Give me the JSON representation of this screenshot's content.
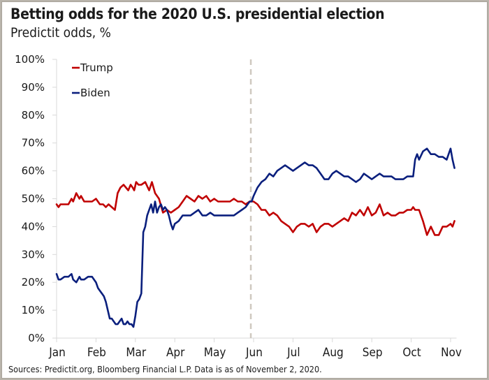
{
  "title": "Betting odds for the 2020 U.S. presidential election",
  "subtitle": "Predictit odds, %",
  "source": "Sources: Predictit.org,  Bloomberg Financial L.P. Data is as of November 2, 2020.",
  "chart_data": {
    "type": "line",
    "title": "Betting odds for the 2020 U.S. presidential election",
    "subtitle": "Predictit odds, %",
    "xlabel": "",
    "ylabel": "",
    "x_unit": "months since Jan 1, 2020 (0 = Jan, 10 = Nov)",
    "xlim": [
      0,
      10.15
    ],
    "ylim": [
      0,
      100
    ],
    "x_ticks": [
      0,
      1,
      2,
      3,
      4,
      5,
      6,
      7,
      8,
      9,
      10
    ],
    "x_tick_labels": [
      "Jan",
      "Feb",
      "Mar",
      "Apr",
      "May",
      "Jun",
      "Jul",
      "Aug",
      "Sep",
      "Oct",
      "Nov"
    ],
    "y_ticks": [
      0,
      10,
      20,
      30,
      40,
      50,
      60,
      70,
      80,
      90,
      100
    ],
    "y_tick_labels": [
      "0%",
      "10%",
      "20%",
      "30%",
      "40%",
      "50%",
      "60%",
      "70%",
      "80%",
      "90%",
      "100%"
    ],
    "grid": false,
    "legend_position": "top-left",
    "annotations": [
      {
        "type": "vertical-dashed-line",
        "x": 4.93,
        "color": "#cfc9c0"
      }
    ],
    "series": [
      {
        "name": "Trump",
        "color": "#c00000",
        "x": [
          0,
          0.05,
          0.1,
          0.2,
          0.3,
          0.38,
          0.42,
          0.5,
          0.58,
          0.62,
          0.7,
          0.8,
          0.9,
          1.0,
          1.1,
          1.18,
          1.25,
          1.32,
          1.4,
          1.48,
          1.55,
          1.62,
          1.7,
          1.76,
          1.82,
          1.88,
          1.93,
          1.97,
          2.02,
          2.08,
          2.15,
          2.25,
          2.35,
          2.42,
          2.5,
          2.6,
          2.7,
          2.8,
          2.9,
          3.0,
          3.1,
          3.2,
          3.3,
          3.4,
          3.5,
          3.6,
          3.7,
          3.8,
          3.9,
          4.0,
          4.1,
          4.2,
          4.3,
          4.4,
          4.5,
          4.6,
          4.7,
          4.8,
          4.9,
          4.95,
          5.0,
          5.1,
          5.2,
          5.3,
          5.4,
          5.5,
          5.6,
          5.7,
          5.8,
          5.9,
          6.0,
          6.1,
          6.2,
          6.3,
          6.4,
          6.5,
          6.6,
          6.7,
          6.8,
          6.9,
          7.0,
          7.1,
          7.2,
          7.3,
          7.4,
          7.5,
          7.6,
          7.7,
          7.8,
          7.9,
          8.0,
          8.1,
          8.2,
          8.3,
          8.4,
          8.5,
          8.6,
          8.7,
          8.8,
          8.9,
          9.0,
          9.05,
          9.1,
          9.15,
          9.2,
          9.3,
          9.4,
          9.5,
          9.6,
          9.7,
          9.8,
          9.9,
          10.0,
          10.05,
          10.1
        ],
        "values": [
          48,
          47,
          48,
          48,
          48,
          50,
          49,
          52,
          50,
          51,
          49,
          49,
          49,
          50,
          48,
          48,
          47,
          48,
          47,
          46,
          52,
          54,
          55,
          54,
          53,
          55,
          54,
          53,
          56,
          55,
          55,
          56,
          53,
          56,
          52,
          50,
          45,
          46,
          45,
          46,
          47,
          49,
          51,
          50,
          49,
          51,
          50,
          51,
          49,
          50,
          49,
          49,
          49,
          49,
          50,
          49,
          49,
          48,
          49,
          49,
          49,
          48,
          46,
          46,
          44,
          45,
          44,
          42,
          41,
          40,
          38,
          40,
          41,
          41,
          40,
          41,
          38,
          40,
          41,
          41,
          40,
          41,
          42,
          43,
          42,
          45,
          44,
          46,
          44,
          47,
          44,
          45,
          48,
          44,
          45,
          44,
          44,
          45,
          45,
          46,
          46,
          47,
          46,
          46,
          46,
          42,
          37,
          40,
          37,
          37,
          40,
          40,
          41,
          40,
          42
        ]
      },
      {
        "name": "Biden",
        "color": "#0a1f7d",
        "x": [
          0,
          0.05,
          0.1,
          0.2,
          0.3,
          0.38,
          0.42,
          0.5,
          0.58,
          0.62,
          0.7,
          0.8,
          0.9,
          1.0,
          1.05,
          1.1,
          1.15,
          1.2,
          1.25,
          1.3,
          1.35,
          1.4,
          1.45,
          1.5,
          1.55,
          1.6,
          1.65,
          1.7,
          1.75,
          1.8,
          1.85,
          1.9,
          1.95,
          2.0,
          2.05,
          2.1,
          2.15,
          2.2,
          2.25,
          2.3,
          2.35,
          2.4,
          2.45,
          2.5,
          2.55,
          2.6,
          2.65,
          2.7,
          2.75,
          2.8,
          2.85,
          2.9,
          2.95,
          3.0,
          3.1,
          3.2,
          3.3,
          3.4,
          3.5,
          3.6,
          3.7,
          3.8,
          3.9,
          4.0,
          4.1,
          4.2,
          4.3,
          4.4,
          4.5,
          4.6,
          4.7,
          4.8,
          4.9,
          4.95,
          5.0,
          5.1,
          5.2,
          5.3,
          5.4,
          5.5,
          5.6,
          5.7,
          5.8,
          5.9,
          6.0,
          6.1,
          6.2,
          6.3,
          6.4,
          6.5,
          6.6,
          6.7,
          6.8,
          6.9,
          7.0,
          7.1,
          7.2,
          7.3,
          7.4,
          7.5,
          7.6,
          7.7,
          7.8,
          7.9,
          8.0,
          8.1,
          8.2,
          8.3,
          8.4,
          8.5,
          8.6,
          8.7,
          8.8,
          8.9,
          9.0,
          9.05,
          9.1,
          9.15,
          9.2,
          9.3,
          9.4,
          9.5,
          9.6,
          9.7,
          9.8,
          9.9,
          10.0,
          10.05,
          10.1
        ],
        "values": [
          23,
          21,
          21,
          22,
          22,
          23,
          21,
          20,
          22,
          21,
          21,
          22,
          22,
          20,
          18,
          17,
          16,
          15,
          13,
          10,
          7,
          7,
          6,
          5,
          5,
          6,
          7,
          5,
          5,
          6,
          5,
          5,
          4,
          8,
          13,
          14,
          16,
          38,
          40,
          44,
          46,
          48,
          45,
          49,
          45,
          47,
          48,
          46,
          47,
          46,
          44,
          41,
          39,
          41,
          42,
          44,
          44,
          44,
          45,
          46,
          44,
          44,
          45,
          44,
          44,
          44,
          44,
          44,
          44,
          45,
          46,
          47,
          49,
          49,
          51,
          54,
          56,
          57,
          59,
          58,
          60,
          61,
          62,
          61,
          60,
          61,
          62,
          63,
          62,
          62,
          61,
          59,
          57,
          57,
          59,
          60,
          59,
          58,
          58,
          57,
          56,
          57,
          59,
          58,
          57,
          58,
          59,
          58,
          58,
          58,
          57,
          57,
          57,
          58,
          58,
          58,
          64,
          66,
          64,
          67,
          68,
          66,
          66,
          65,
          65,
          64,
          68,
          64,
          61
        ]
      }
    ]
  }
}
